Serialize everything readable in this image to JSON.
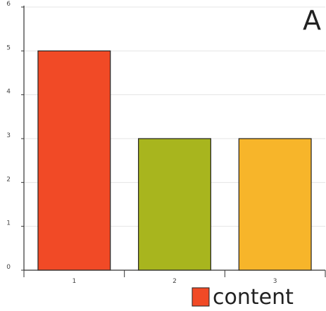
{
  "chart_data": {
    "type": "bar",
    "categories": [
      "1",
      "2",
      "3"
    ],
    "series": [
      {
        "name": "content",
        "values": [
          5,
          3,
          3
        ]
      }
    ],
    "bar_colors": [
      "#f14a26",
      "#a8b51e",
      "#f7b52a"
    ],
    "panel_label": "A",
    "ylim": [
      0,
      6
    ],
    "yticks": [
      0,
      1,
      2,
      3,
      4,
      5,
      6
    ],
    "grid": true,
    "legend_position": "bottom-right",
    "legend_color": "#f14a26",
    "xlabel": "",
    "ylabel": ""
  }
}
